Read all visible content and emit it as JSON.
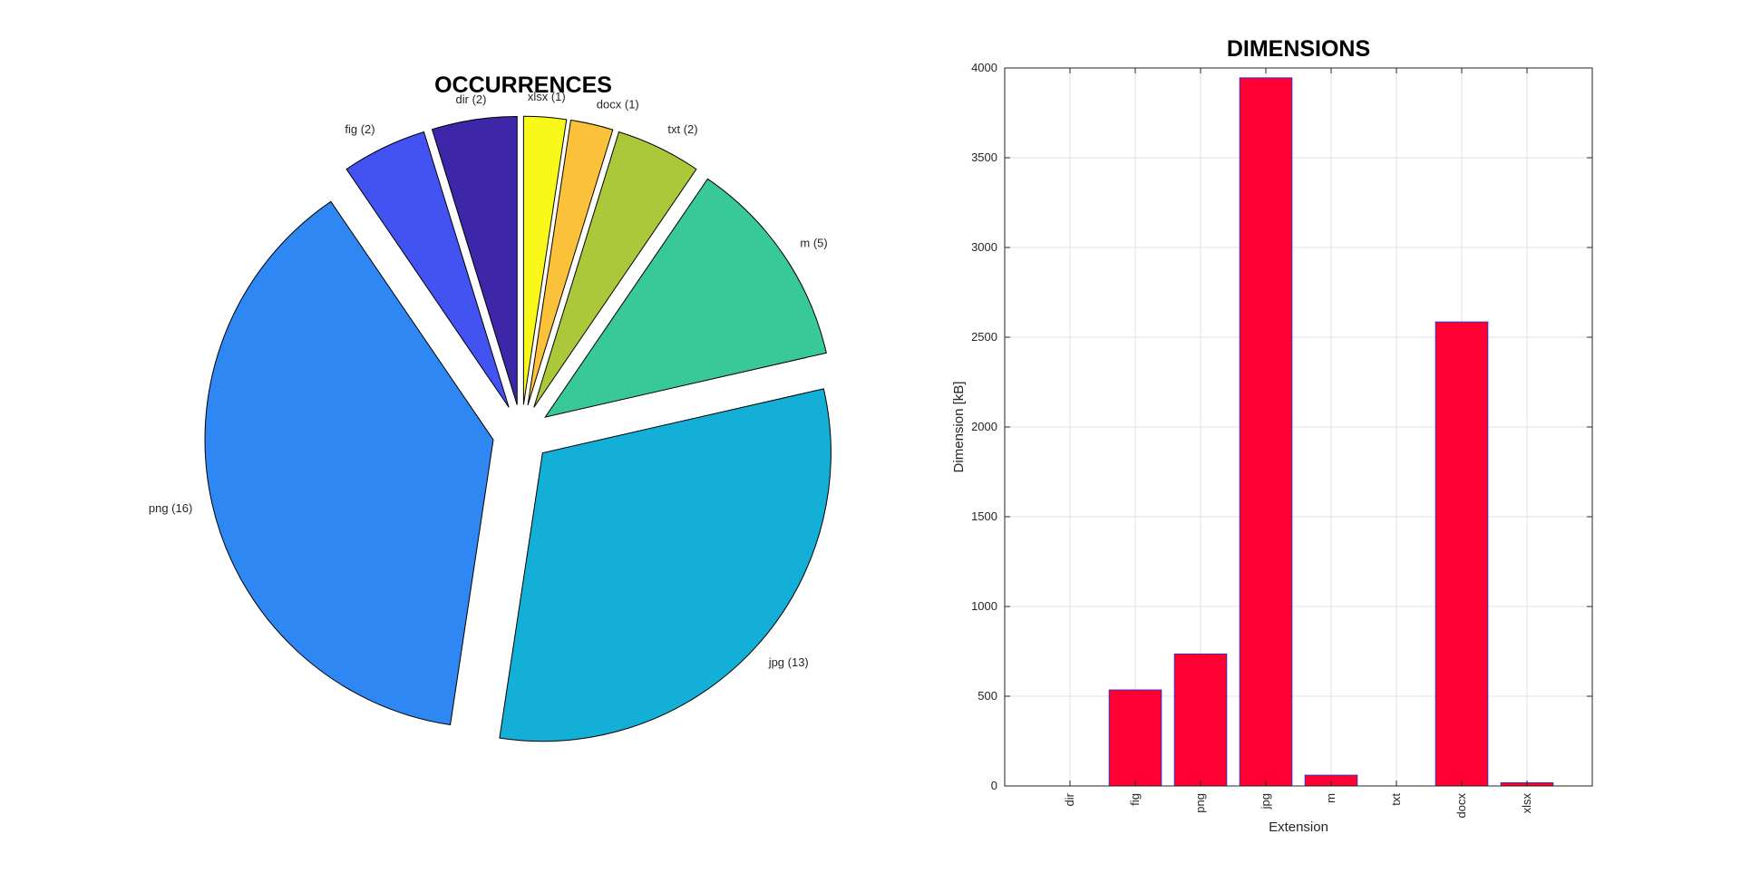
{
  "chart_data": [
    {
      "type": "pie",
      "title": "OCCURRENCES",
      "start_angle_deg": 90,
      "direction": "counterclockwise",
      "exploded": true,
      "slices": [
        {
          "label": "dir (2)",
          "value": 2,
          "color": "#3d26a8"
        },
        {
          "label": "fig (2)",
          "value": 2,
          "color": "#4353f2"
        },
        {
          "label": "png (16)",
          "value": 16,
          "color": "#2e87f2"
        },
        {
          "label": "jpg (13)",
          "value": 13,
          "color": "#13afd7"
        },
        {
          "label": "m (5)",
          "value": 5,
          "color": "#39c898"
        },
        {
          "label": "txt (2)",
          "value": 2,
          "color": "#aac83a"
        },
        {
          "label": "docx (1)",
          "value": 1,
          "color": "#fcc13a"
        },
        {
          "label": "xlsx (1)",
          "value": 1,
          "color": "#f9f81b"
        }
      ]
    },
    {
      "type": "bar",
      "title": "DIMENSIONS",
      "xlabel": "Extension",
      "ylabel": "Dimension [kB]",
      "categories": [
        "dir",
        "fig",
        "png",
        "jpg",
        "m",
        "txt",
        "docx",
        "xlsx"
      ],
      "values": [
        0,
        535,
        735,
        3945,
        60,
        0,
        2585,
        18
      ],
      "ylim": [
        0,
        4000
      ],
      "yticks": [
        0,
        500,
        1000,
        1500,
        2000,
        2500,
        3000,
        3500,
        4000
      ],
      "grid": true,
      "bar_color": "#ff0033",
      "bar_edge_color": "#3b2bc8"
    }
  ]
}
